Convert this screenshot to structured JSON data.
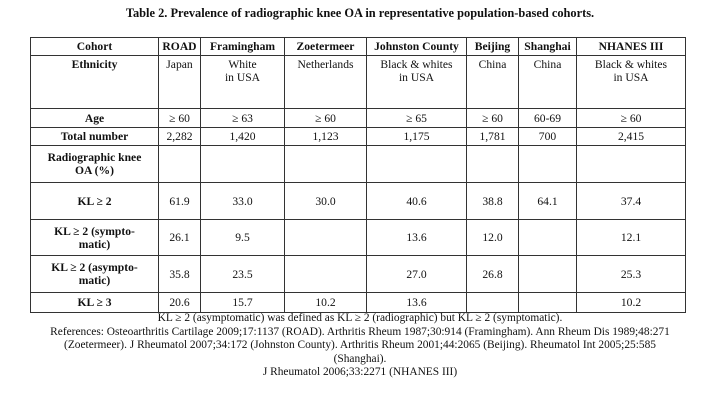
{
  "title": "Table 2. Prevalence of radiographic knee OA in representative population-based cohorts.",
  "header": {
    "label": "Cohort",
    "cohorts": [
      "ROAD",
      "Framingham",
      "Zoetermeer",
      "Johnston County",
      "Beijing",
      "Shanghai",
      "NHANES III"
    ]
  },
  "ethnicity": {
    "label": "Ethnicity",
    "values": [
      "Japan",
      "White\nin USA",
      "Netherlands",
      "Black & whites\nin USA",
      "China",
      "China",
      "Black & whites\nin USA"
    ]
  },
  "age": {
    "label": "Age",
    "values": [
      "≥ 60",
      "≥ 63",
      "≥ 60",
      "≥ 65",
      "≥ 60",
      "60-69",
      "≥ 60"
    ]
  },
  "total": {
    "label": "Total number",
    "values": [
      "2,282",
      "1,420",
      "1,123",
      "1,175",
      "1,781",
      "700",
      "2,415"
    ]
  },
  "section_label": "Radiographic knee\nOA (%)",
  "kl_rows": [
    {
      "label": "KL ≥ 2",
      "values": [
        "61.9",
        "33.0",
        "30.0",
        "40.6",
        "38.8",
        "64.1",
        "37.4"
      ]
    },
    {
      "label": "KL ≥ 2 (sympto-\nmatic)",
      "values": [
        "26.1",
        "9.5",
        "",
        "13.6",
        "12.0",
        "",
        "12.1"
      ]
    },
    {
      "label": "KL ≥ 2 (asympto-\nmatic)",
      "values": [
        "35.8",
        "23.5",
        "",
        "27.0",
        "26.8",
        "",
        "25.3"
      ]
    },
    {
      "label": "KL ≥ 3",
      "values": [
        "20.6",
        "15.7",
        "10.2",
        "13.6",
        "",
        "",
        "10.2"
      ]
    }
  ],
  "footnote": "KL ≥ 2 (asymptomatic) was defined as KL ≥ 2 (radiographic) but KL ≥ 2 (symptomatic).",
  "references": [
    "References: Osteoarthritis Cartilage 2009;17:1137 (ROAD). Arthritis Rheum 1987;30:914 (Framingham). Ann Rheum Dis 1989;48:271",
    "(Zoetermeer). J Rheumatol 2007;34:172 (Johnston County). Arthritis Rheum 2001;44:2065 (Beijing). Rheumatol Int 2005;25:585",
    "(Shanghai).",
    "J Rheumatol 2006;33:2271 (NHANES III)"
  ]
}
